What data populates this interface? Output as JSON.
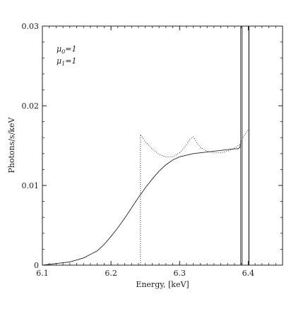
{
  "chart_data": {
    "type": "line",
    "title": "",
    "xlabel": "Energy, [keV]",
    "ylabel": "Photons/s/keV",
    "xlim": [
      6.1,
      6.45
    ],
    "ylim": [
      0,
      0.03
    ],
    "grid": false,
    "x_ticks": [
      6.1,
      6.2,
      6.3,
      6.4
    ],
    "x_tick_labels": [
      "6.1",
      "6.2",
      "6.3",
      "6.4"
    ],
    "y_ticks": [
      0,
      0.01,
      0.02,
      0.03
    ],
    "y_tick_labels": [
      "0",
      "0.01",
      "0.02",
      "0.03"
    ],
    "annotations": [
      {
        "symbol": "μ",
        "subscript": "0",
        "text": "=1"
      },
      {
        "symbol": "μ",
        "subscript": "1",
        "text": "=1"
      }
    ],
    "series": [
      {
        "style": "solid",
        "color": "#222222",
        "x": [
          6.1,
          6.12,
          6.14,
          6.16,
          6.18,
          6.19,
          6.2,
          6.21,
          6.22,
          6.23,
          6.24,
          6.25,
          6.26,
          6.27,
          6.28,
          6.29,
          6.3,
          6.31,
          6.32,
          6.33,
          6.34,
          6.35,
          6.36,
          6.37,
          6.38,
          6.385,
          6.388,
          6.389
        ],
        "y": [
          0.0,
          0.0002,
          0.0004,
          0.0009,
          0.0018,
          0.0026,
          0.0036,
          0.0047,
          0.0059,
          0.0072,
          0.0085,
          0.0097,
          0.0108,
          0.0118,
          0.0126,
          0.0132,
          0.0136,
          0.0138,
          0.014,
          0.0141,
          0.0142,
          0.0143,
          0.0144,
          0.0145,
          0.0146,
          0.0146,
          0.0148,
          0.0155
        ]
      },
      {
        "style": "dotted",
        "color": "#222222",
        "x": [
          6.243,
          6.243,
          6.25,
          6.26,
          6.27,
          6.28,
          6.29,
          6.3,
          6.31,
          6.315,
          6.32,
          6.325,
          6.33,
          6.34,
          6.35,
          6.36,
          6.37,
          6.38,
          6.389,
          6.39,
          6.4
        ],
        "y": [
          0.0,
          0.0164,
          0.0155,
          0.0146,
          0.0139,
          0.0136,
          0.0136,
          0.0141,
          0.0151,
          0.0158,
          0.0161,
          0.0154,
          0.0148,
          0.0143,
          0.0141,
          0.0141,
          0.0143,
          0.0147,
          0.0152,
          0.0157,
          0.017
        ]
      }
    ],
    "vertical_lines": [
      {
        "x": 6.389,
        "y0": 0,
        "y1": 0.03,
        "style": "solid",
        "color": "#555555"
      },
      {
        "x": 6.391,
        "y0": 0,
        "y1": 0.03,
        "style": "solid",
        "color": "#555555"
      },
      {
        "x": 6.401,
        "y0": 0,
        "y1": 0.03,
        "style": "solid",
        "color": "#222222"
      }
    ]
  }
}
